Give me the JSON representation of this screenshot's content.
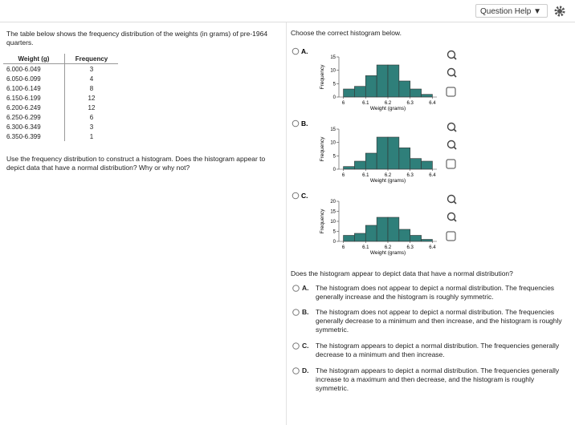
{
  "toolbar": {
    "help": "Question Help"
  },
  "question": {
    "intro": "The table below shows the frequency distribution of the weights (in grams) of pre-1964 quarters.",
    "table": {
      "headers": [
        "Weight (g)",
        "Frequency"
      ],
      "rows": [
        [
          "6.000-6.049",
          3
        ],
        [
          "6.050-6.099",
          4
        ],
        [
          "6.100-6.149",
          8
        ],
        [
          "6.150-6.199",
          12
        ],
        [
          "6.200-6.249",
          12
        ],
        [
          "6.250-6.299",
          6
        ],
        [
          "6.300-6.349",
          3
        ],
        [
          "6.350-6.399",
          1
        ]
      ]
    },
    "prompt": "Use the frequency distribution to construct a histogram. Does the histogram appear to depict data that have a normal distribution? Why or why not?"
  },
  "part1": {
    "instruction": "Choose the correct histogram below.",
    "options": [
      {
        "label": "A.",
        "chart_data": {
          "type": "histogram",
          "bins": [
            6.0,
            6.05,
            6.1,
            6.15,
            6.2,
            6.25,
            6.3,
            6.35,
            6.4
          ],
          "values": [
            3,
            4,
            8,
            12,
            12,
            6,
            3,
            1
          ],
          "color": "#2f7f7a",
          "xlabel": "Weight (grams)",
          "ylabel": "Frequency",
          "xlim": [
            5.98,
            6.42
          ],
          "xticks": [
            6,
            6.1,
            6.2,
            6.3,
            6.4
          ],
          "ylim": [
            0,
            15
          ],
          "yticks": [
            0,
            5,
            10,
            15
          ]
        }
      },
      {
        "label": "B.",
        "chart_data": {
          "type": "histogram",
          "bins": [
            6.0,
            6.05,
            6.1,
            6.15,
            6.2,
            6.25,
            6.3,
            6.35,
            6.4
          ],
          "values": [
            1,
            3,
            6,
            12,
            12,
            8,
            4,
            3
          ],
          "color": "#2f7f7a",
          "xlabel": "Weight (grams)",
          "ylabel": "Frequency",
          "xlim": [
            5.98,
            6.42
          ],
          "xticks": [
            6,
            6.1,
            6.2,
            6.3,
            6.4
          ],
          "ylim": [
            0,
            15
          ],
          "yticks": [
            0,
            5,
            10,
            15
          ]
        }
      },
      {
        "label": "C.",
        "chart_data": {
          "type": "histogram",
          "bins": [
            6.0,
            6.05,
            6.1,
            6.15,
            6.2,
            6.25,
            6.3,
            6.35,
            6.4
          ],
          "values": [
            3,
            4,
            8,
            12,
            12,
            6,
            3,
            1
          ],
          "color": "#2f7f7a",
          "xlabel": "Weight (grams)",
          "ylabel": "Frequency",
          "xlim": [
            5.98,
            6.42
          ],
          "xticks": [
            6,
            6.1,
            6.2,
            6.3,
            6.4
          ],
          "ylim": [
            0,
            20
          ],
          "yticks": [
            0,
            5,
            10,
            15,
            20
          ]
        }
      }
    ]
  },
  "part2": {
    "question": "Does the histogram appear to depict data that have a normal distribution?",
    "options": [
      {
        "label": "A.",
        "text": "The histogram does not appear to depict a normal distribution. The frequencies generally increase and the histogram is roughly symmetric."
      },
      {
        "label": "B.",
        "text": "The histogram does not appear to depict a normal distribution. The frequencies generally decrease to a minimum and then increase, and the histogram is roughly symmetric."
      },
      {
        "label": "C.",
        "text": "The histogram appears to depict a normal distribution. The frequencies generally decrease to a minimum and then increase."
      },
      {
        "label": "D.",
        "text": "The histogram appears to depict a normal distribution. The frequencies generally increase to a maximum and then decrease, and the histogram is roughly symmetric."
      }
    ]
  }
}
